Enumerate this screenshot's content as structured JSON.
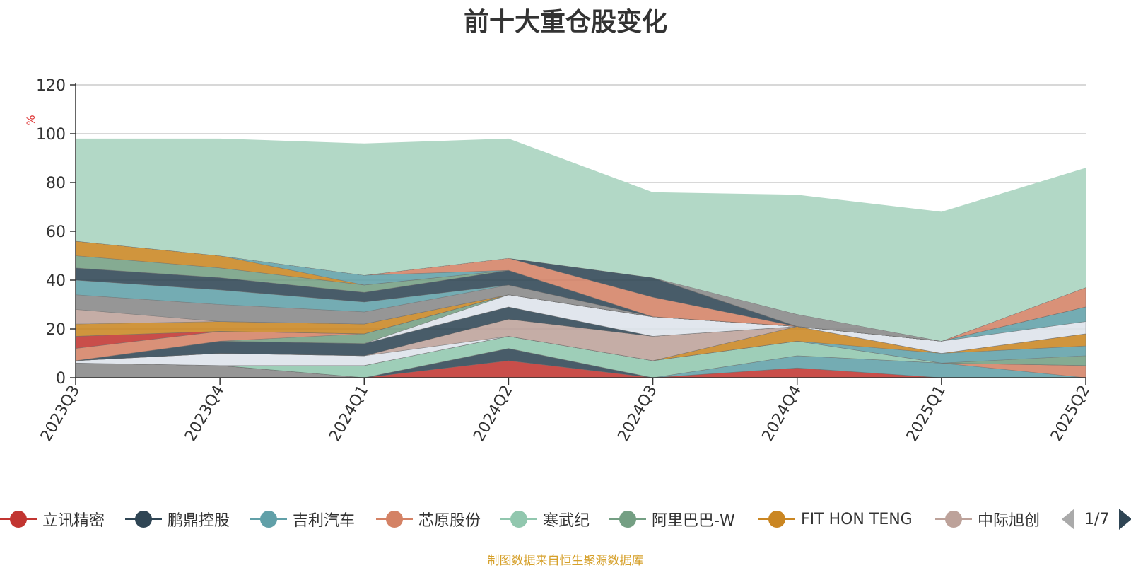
{
  "title": "前十大重仓股变化",
  "source_note": "制图数据来自恒生聚源数据库",
  "legend_page": "1/7",
  "colors": {
    "background_area": "#b2d8c6",
    "axis": "#333333",
    "grid": "#cccccc",
    "unit": "#dd3333",
    "title": "#333333",
    "source": "#d6a02a"
  },
  "legend": [
    {
      "name": "立讯精密",
      "color": "#c23531"
    },
    {
      "name": "鹏鼎控股",
      "color": "#2f4554"
    },
    {
      "name": "吉利汽车",
      "color": "#61a0a8"
    },
    {
      "name": "芯原股份",
      "color": "#d48265"
    },
    {
      "name": "寒武纪",
      "color": "#91c7ae"
    },
    {
      "name": "阿里巴巴-W",
      "color": "#749f83"
    },
    {
      "name": "FIT HON TENG",
      "color": "#ca8622"
    },
    {
      "name": "中际旭创",
      "color": "#bda29a"
    }
  ],
  "chart_data": {
    "type": "area",
    "stacked": true,
    "title": "前十大重仓股变化",
    "xlabel": "",
    "ylabel": "%",
    "ylim": [
      0,
      120
    ],
    "yticks": [
      0,
      20,
      40,
      60,
      80,
      100,
      120
    ],
    "categories": [
      "2023Q3",
      "2023Q4",
      "2024Q1",
      "2024Q2",
      "2024Q3",
      "2024Q4",
      "2025Q1",
      "2025Q2"
    ],
    "series": [
      {
        "color": "#888888",
        "values": [
          6,
          5,
          0,
          0,
          0,
          0,
          0,
          0
        ]
      },
      {
        "color": "#c23531",
        "values": [
          0,
          0,
          0,
          7,
          0,
          4,
          0,
          0
        ]
      },
      {
        "color": "#2f4554",
        "values": [
          0,
          0,
          0,
          5,
          0,
          0,
          0,
          0
        ]
      },
      {
        "color": "#61a0a8",
        "values": [
          0,
          0,
          0,
          0,
          0,
          5,
          6,
          0
        ]
      },
      {
        "color": "#d48265",
        "values": [
          0,
          0,
          0,
          0,
          0,
          0,
          0,
          5
        ]
      },
      {
        "color": "#91c7ae",
        "values": [
          0,
          0,
          5,
          5,
          7,
          6,
          0,
          0
        ]
      },
      {
        "color": "#749f83",
        "values": [
          0,
          0,
          0,
          0,
          0,
          0,
          0,
          4
        ]
      },
      {
        "color": "#61a0a8",
        "values": [
          0,
          0,
          0,
          0,
          0,
          0,
          4,
          4
        ]
      },
      {
        "color": "#ca8622",
        "values": [
          0,
          0,
          0,
          0,
          0,
          6,
          0,
          5
        ]
      },
      {
        "color": "#dde3ea",
        "values": [
          1,
          5,
          4,
          0,
          0,
          0,
          0,
          0
        ]
      },
      {
        "color": "#bda29a",
        "values": [
          0,
          0,
          0,
          7,
          10,
          0,
          0,
          0
        ]
      },
      {
        "color": "#dde3ea",
        "values": [
          0,
          0,
          0,
          0,
          0,
          0,
          5,
          5
        ]
      },
      {
        "color": "#61a0a8",
        "values": [
          0,
          0,
          0,
          0,
          0,
          0,
          0,
          6
        ]
      },
      {
        "color": "#2f4554",
        "values": [
          0,
          5,
          5,
          5,
          0,
          0,
          0,
          0
        ]
      },
      {
        "color": "#dde3ea",
        "values": [
          0,
          0,
          0,
          5,
          8,
          0,
          0,
          0
        ]
      },
      {
        "color": "#749f83",
        "values": [
          0,
          0,
          4,
          0,
          0,
          0,
          0,
          0
        ]
      },
      {
        "color": "#d48265",
        "values": [
          5,
          4,
          0,
          0,
          0,
          0,
          0,
          8
        ]
      },
      {
        "color": "#c23531",
        "values": [
          5,
          0,
          0,
          0,
          0,
          0,
          0,
          0
        ]
      },
      {
        "color": "#bda29a",
        "values": [
          0,
          0,
          0,
          0,
          0,
          0,
          0,
          0
        ]
      },
      {
        "color": "#ca8622",
        "values": [
          5,
          4,
          4,
          0,
          0,
          0,
          0,
          0
        ]
      },
      {
        "color": "#bda29a",
        "values": [
          6,
          0,
          0,
          0,
          0,
          0,
          0,
          0
        ]
      },
      {
        "color": "#888888",
        "values": [
          6,
          7,
          5,
          4,
          0,
          0,
          0,
          0
        ]
      },
      {
        "color": "#61a0a8",
        "values": [
          6,
          6,
          4,
          0,
          0,
          0,
          0,
          0
        ]
      },
      {
        "color": "#2f4554",
        "values": [
          5,
          5,
          4,
          6,
          0,
          0,
          0,
          0
        ]
      },
      {
        "color": "#749f83",
        "values": [
          5,
          4,
          3,
          0,
          0,
          0,
          0,
          0
        ]
      },
      {
        "color": "#ca8622",
        "values": [
          6,
          5,
          0,
          0,
          0,
          0,
          0,
          0
        ]
      },
      {
        "color": "#61a0a8",
        "values": [
          0,
          0,
          4,
          0,
          0,
          0,
          0,
          0
        ]
      },
      {
        "color": "#d48265",
        "values": [
          0,
          0,
          0,
          5,
          8,
          0,
          0,
          0
        ]
      },
      {
        "color": "#2f4554",
        "values": [
          0,
          0,
          0,
          0,
          8,
          0,
          0,
          0
        ]
      },
      {
        "color": "#c23531",
        "values": [
          0,
          0,
          0,
          0,
          0,
          0,
          0,
          0
        ]
      },
      {
        "color": "#dde3ea",
        "values": [
          0,
          0,
          0,
          0,
          0,
          0,
          0,
          0
        ]
      },
      {
        "color": "#d48265",
        "values": [
          0,
          0,
          0,
          0,
          0,
          0,
          0,
          0
        ]
      },
      {
        "color": "#61a0a8",
        "values": [
          0,
          0,
          0,
          0,
          0,
          0,
          0,
          0
        ]
      },
      {
        "color": "#888888",
        "values": [
          0,
          0,
          0,
          0,
          0,
          5,
          0,
          0
        ]
      },
      {
        "color": "#c23531",
        "values": [
          0,
          0,
          0,
          0,
          0,
          0,
          0,
          0
        ]
      },
      {
        "color": "#dde3ea",
        "values": [
          0,
          0,
          0,
          0,
          0,
          0,
          0,
          0
        ]
      },
      {
        "color": "#b2d8c6",
        "values": [
          42.0,
          48.0,
          54.0,
          49.0,
          35.0,
          49.0,
          53.0,
          49.0
        ]
      }
    ]
  }
}
